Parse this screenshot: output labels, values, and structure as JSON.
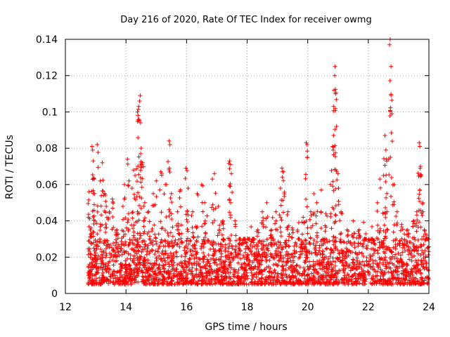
{
  "chart_data": {
    "type": "scatter",
    "title": "Day 216 of 2020, Rate Of TEC Index for receiver owmg",
    "xlabel": "GPS time / hours",
    "ylabel": "ROTI / TECUs",
    "xlim": [
      12,
      24
    ],
    "ylim": [
      0,
      0.14
    ],
    "xticks": [
      12,
      14,
      16,
      18,
      20,
      22,
      24
    ],
    "yticks": [
      0,
      0.02,
      0.04,
      0.06,
      0.08,
      0.1,
      0.12,
      0.14
    ],
    "xtick_labels": [
      "12",
      "14",
      "16",
      "18",
      "20",
      "22",
      "24"
    ],
    "ytick_labels": [
      "0",
      "0.02",
      "0.04",
      "0.06",
      "0.08",
      "0.1",
      "0.12",
      "0.14"
    ],
    "grid": true,
    "marker": "+",
    "color": "#ff0000",
    "series": [
      {
        "name": "ROTI",
        "x_range": [
          12.75,
          24.0
        ],
        "baseline_typical_range": [
          0.005,
          0.03
        ],
        "points": [
          [
            12.78,
            0.056
          ],
          [
            12.85,
            0.036
          ],
          [
            12.88,
            0.081
          ],
          [
            12.9,
            0.079
          ],
          [
            12.92,
            0.073
          ],
          [
            12.95,
            0.063
          ],
          [
            13.05,
            0.082
          ],
          [
            13.15,
            0.062
          ],
          [
            13.22,
            0.072
          ],
          [
            13.3,
            0.055
          ],
          [
            13.35,
            0.048
          ],
          [
            13.45,
            0.045
          ],
          [
            13.55,
            0.052
          ],
          [
            13.7,
            0.035
          ],
          [
            13.9,
            0.048
          ],
          [
            13.95,
            0.06
          ],
          [
            14.05,
            0.074
          ],
          [
            14.1,
            0.062
          ],
          [
            14.2,
            0.058
          ],
          [
            14.25,
            0.068
          ],
          [
            14.3,
            0.065
          ],
          [
            14.38,
            0.1
          ],
          [
            14.4,
            0.098
          ],
          [
            14.42,
            0.103
          ],
          [
            14.45,
            0.106
          ],
          [
            14.47,
            0.109
          ],
          [
            14.48,
            0.094
          ],
          [
            14.5,
            0.08
          ],
          [
            14.55,
            0.072
          ],
          [
            14.62,
            0.05
          ],
          [
            14.75,
            0.045
          ],
          [
            14.9,
            0.055
          ],
          [
            15.0,
            0.062
          ],
          [
            15.15,
            0.067
          ],
          [
            15.3,
            0.06
          ],
          [
            15.42,
            0.084
          ],
          [
            15.45,
            0.082
          ],
          [
            15.5,
            0.055
          ],
          [
            15.7,
            0.045
          ],
          [
            15.8,
            0.057
          ],
          [
            15.98,
            0.069
          ],
          [
            16.05,
            0.058
          ],
          [
            16.2,
            0.045
          ],
          [
            16.35,
            0.055
          ],
          [
            16.5,
            0.06
          ],
          [
            16.6,
            0.05
          ],
          [
            16.85,
            0.063
          ],
          [
            16.92,
            0.066
          ],
          [
            17.05,
            0.048
          ],
          [
            17.2,
            0.04
          ],
          [
            17.42,
            0.073
          ],
          [
            17.45,
            0.071
          ],
          [
            17.48,
            0.066
          ],
          [
            17.6,
            0.04
          ],
          [
            17.75,
            0.03
          ],
          [
            17.9,
            0.028
          ],
          [
            18.05,
            0.025
          ],
          [
            18.2,
            0.03
          ],
          [
            18.35,
            0.035
          ],
          [
            18.5,
            0.045
          ],
          [
            18.65,
            0.05
          ],
          [
            18.8,
            0.035
          ],
          [
            18.95,
            0.045
          ],
          [
            19.1,
            0.058
          ],
          [
            19.15,
            0.069
          ],
          [
            19.2,
            0.067
          ],
          [
            19.35,
            0.045
          ],
          [
            19.5,
            0.035
          ],
          [
            19.7,
            0.03
          ],
          [
            19.85,
            0.042
          ],
          [
            19.95,
            0.083
          ],
          [
            19.98,
            0.082
          ],
          [
            20.1,
            0.045
          ],
          [
            20.2,
            0.055
          ],
          [
            20.3,
            0.05
          ],
          [
            20.45,
            0.057
          ],
          [
            20.6,
            0.044
          ],
          [
            20.75,
            0.06
          ],
          [
            20.82,
            0.081
          ],
          [
            20.84,
            0.079
          ],
          [
            20.85,
            0.103
          ],
          [
            20.87,
            0.112
          ],
          [
            20.89,
            0.12
          ],
          [
            20.9,
            0.125
          ],
          [
            20.92,
            0.11
          ],
          [
            20.95,
            0.092
          ],
          [
            21.0,
            0.066
          ],
          [
            21.1,
            0.045
          ],
          [
            21.3,
            0.035
          ],
          [
            21.5,
            0.04
          ],
          [
            21.7,
            0.035
          ],
          [
            21.9,
            0.03
          ],
          [
            22.1,
            0.028
          ],
          [
            22.3,
            0.05
          ],
          [
            22.38,
            0.063
          ],
          [
            22.5,
            0.065
          ],
          [
            22.55,
            0.087
          ],
          [
            22.58,
            0.079
          ],
          [
            22.6,
            0.074
          ],
          [
            22.7,
            0.137
          ],
          [
            22.72,
            0.14
          ],
          [
            22.75,
            0.125
          ],
          [
            22.78,
            0.099
          ],
          [
            22.85,
            0.06
          ],
          [
            22.95,
            0.045
          ],
          [
            23.1,
            0.038
          ],
          [
            23.3,
            0.035
          ],
          [
            23.5,
            0.04
          ],
          [
            23.6,
            0.045
          ],
          [
            23.68,
            0.083
          ],
          [
            23.7,
            0.081
          ],
          [
            23.72,
            0.07
          ],
          [
            23.75,
            0.065
          ],
          [
            23.8,
            0.05
          ],
          [
            23.85,
            0.035
          ],
          [
            23.9,
            0.03
          ],
          [
            23.95,
            0.025
          ]
        ]
      }
    ]
  }
}
